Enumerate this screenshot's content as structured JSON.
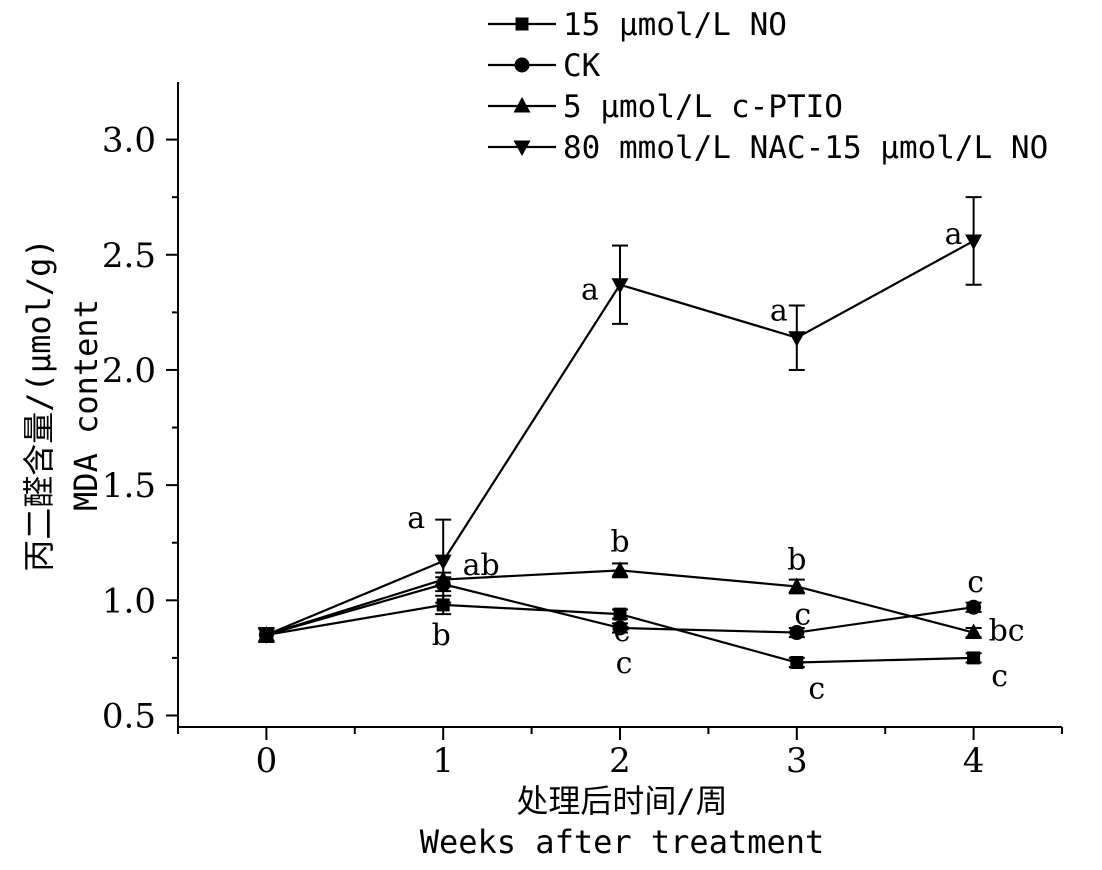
{
  "chart_data": {
    "type": "line",
    "xlabel": "处理后时间/周",
    "xlabel_en": "Weeks after treatment",
    "ylabel": "丙二醛含量/(μmol/g)",
    "ylabel_en": "MDA content",
    "x": [
      0,
      1,
      2,
      3,
      4
    ],
    "x_tick_labels": [
      "0",
      "1",
      "2",
      "3",
      "4"
    ],
    "xlim": [
      -0.5,
      4.5
    ],
    "ylim": [
      0.45,
      3.25
    ],
    "y_ticks": [
      0.5,
      1.0,
      1.5,
      2.0,
      2.5,
      3.0
    ],
    "y_tick_labels": [
      "0.5",
      "1.0",
      "1.5",
      "2.0",
      "2.5",
      "3.0"
    ],
    "grid": false,
    "legend_position": "top-right",
    "series": [
      {
        "name": "15 μmol/L NO",
        "marker": "square",
        "values": [
          0.85,
          0.98,
          0.94,
          0.73,
          0.75
        ],
        "errors": [
          0.03,
          0.04,
          0.02,
          0.02,
          0.02
        ],
        "letters": [
          "",
          "b",
          "c",
          "c",
          "c"
        ]
      },
      {
        "name": "CK",
        "marker": "circle",
        "values": [
          0.85,
          1.07,
          0.88,
          0.86,
          0.97
        ],
        "errors": [
          0.03,
          0.03,
          0.02,
          0.02,
          0.02
        ],
        "letters": [
          "",
          "ab",
          "c",
          "c",
          "c"
        ]
      },
      {
        "name": "5 μmol/L c-PTIO",
        "marker": "triangle-up",
        "values": [
          0.85,
          1.09,
          1.13,
          1.06,
          0.86
        ],
        "errors": [
          0.03,
          0.03,
          0.03,
          0.03,
          0.02
        ],
        "letters": [
          "",
          "",
          "b",
          "b",
          "bc"
        ]
      },
      {
        "name": "80 mmol/L NAC-15 μmol/L NO",
        "marker": "triangle-down",
        "values": [
          0.85,
          1.17,
          2.37,
          2.14,
          2.56
        ],
        "errors": [
          0.03,
          0.18,
          0.17,
          0.14,
          0.19
        ],
        "letters": [
          "",
          "a",
          "a",
          "a",
          "a"
        ]
      }
    ]
  }
}
